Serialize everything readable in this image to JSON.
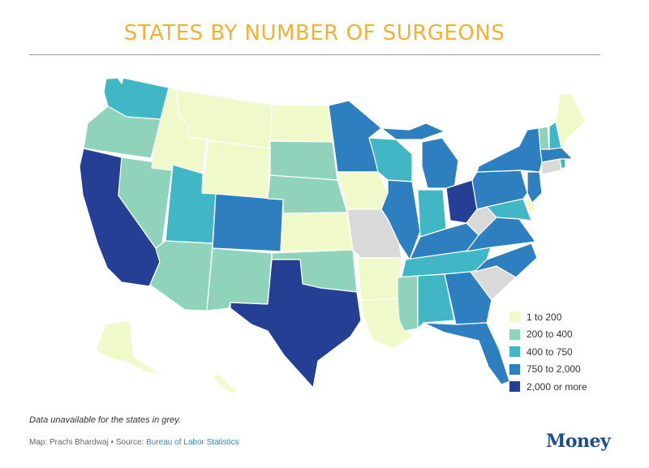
{
  "title": "STATES BY NUMBER OF SURGEONS",
  "colors": {
    "bin1": "#f0f9c9",
    "bin2": "#8fd3bb",
    "bin3": "#41b6c4",
    "bin4": "#2d7fc0",
    "bin5": "#253f94",
    "unavailable": "#d9d9d9",
    "title": "#f2b134"
  },
  "legend": [
    {
      "label": "1 to 200",
      "bin": "bin1"
    },
    {
      "label": "200 to 400",
      "bin": "bin2"
    },
    {
      "label": "400 to 750",
      "bin": "bin3"
    },
    {
      "label": "750 to 2,000",
      "bin": "bin4"
    },
    {
      "label": "2,000 or more",
      "bin": "bin5"
    }
  ],
  "states": {
    "WA": "bin3",
    "OR": "bin2",
    "CA": "bin5",
    "NV": "bin2",
    "ID": "bin1",
    "MT": "bin1",
    "WY": "bin1",
    "UT": "bin3",
    "AZ": "bin2",
    "CO": "bin4",
    "NM": "bin2",
    "ND": "bin1",
    "SD": "bin2",
    "NE": "bin2",
    "KS": "bin1",
    "OK": "bin2",
    "TX": "bin5",
    "MN": "bin4",
    "IA": "bin1",
    "MO": "unavailable",
    "AR": "bin1",
    "LA": "bin1",
    "WI": "bin3",
    "IL": "bin4",
    "MI": "bin4",
    "IN": "bin3",
    "OH": "bin5",
    "KY": "bin4",
    "TN": "bin3",
    "MS": "bin2",
    "AL": "bin3",
    "GA": "bin4",
    "FL": "bin4",
    "SC": "unavailable",
    "NC": "bin4",
    "VA": "bin4",
    "WV": "unavailable",
    "PA": "bin4",
    "NY": "bin4",
    "NJ": "bin4",
    "DE": "bin1",
    "MD": "bin3",
    "CT": "unavailable",
    "RI": "bin3",
    "MA": "bin4",
    "VT": "bin2",
    "NH": "bin3",
    "ME": "bin1",
    "AK": "bin1",
    "HI": "bin1"
  },
  "note": "Data unavailable for the states in grey.",
  "credit": {
    "prefix": "Map: Prachi Bhardwaj • Source: ",
    "source": "Bureau of Labor Statistics"
  },
  "brand": "Money"
}
